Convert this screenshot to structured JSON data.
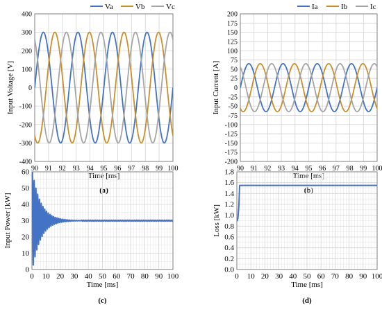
{
  "colors": {
    "va": "#4472c4",
    "vb": "#c9902a",
    "vc": "#a5a5a5",
    "ia": "#4472c4",
    "ib": "#c9902a",
    "ic": "#a5a5a5",
    "power": "#4472c4",
    "loss": "#4472c4",
    "grid": "#d4d4d4",
    "axis": "#7f7f7f"
  },
  "chart_data": [
    {
      "id": "a",
      "type": "line",
      "panel_label": "(a)",
      "xlabel": "Time [ms]",
      "ylabel": "Input Voltage [V]",
      "xlim": [
        90,
        100
      ],
      "ylim": [
        -400,
        400
      ],
      "xticks": [
        90,
        91,
        92,
        93,
        94,
        95,
        96,
        97,
        98,
        99,
        100
      ],
      "yticks": [
        -400,
        -300,
        -200,
        -100,
        0,
        100,
        200,
        300,
        400
      ],
      "grid": true,
      "legend_position": "top-right",
      "waveform": "three-phase sine",
      "frequency_hz": 400,
      "series": [
        {
          "name": "Va",
          "amplitude": 300,
          "phase_deg": 0
        },
        {
          "name": "Vb",
          "amplitude": 300,
          "phase_deg": -120
        },
        {
          "name": "Vc",
          "amplitude": 300,
          "phase_deg": 120
        }
      ]
    },
    {
      "id": "b",
      "type": "line",
      "panel_label": "(b)",
      "xlabel": "Time [ms]",
      "ylabel": "Input Current [A]",
      "xlim": [
        90,
        100
      ],
      "ylim": [
        -200,
        200
      ],
      "xticks": [
        90,
        91,
        92,
        93,
        94,
        95,
        96,
        97,
        98,
        99,
        100
      ],
      "yticks": [
        -200,
        -175,
        -150,
        -125,
        -100,
        -75,
        -50,
        -25,
        0,
        25,
        50,
        75,
        100,
        125,
        150,
        175,
        200
      ],
      "grid": true,
      "legend_position": "top-right",
      "waveform": "three-phase sine",
      "frequency_hz": 400,
      "series": [
        {
          "name": "Ia",
          "amplitude": 65,
          "phase_deg": 0
        },
        {
          "name": "Ib",
          "amplitude": 65,
          "phase_deg": -120
        },
        {
          "name": "Ic",
          "amplitude": 65,
          "phase_deg": 120
        }
      ]
    },
    {
      "id": "c",
      "type": "line",
      "panel_label": "(c)",
      "xlabel": "Time [ms]",
      "ylabel": "Input Power [kW]",
      "xlim": [
        0,
        100
      ],
      "ylim": [
        0,
        60
      ],
      "xticks": [
        0,
        10,
        20,
        30,
        40,
        50,
        60,
        70,
        80,
        90,
        100
      ],
      "yticks": [
        0,
        10,
        20,
        30,
        40,
        50,
        60
      ],
      "grid": true,
      "series": [
        {
          "name": "",
          "steady_state": 30,
          "initial_oscillation_amplitude": 32,
          "decay_time_constant_ms": 6,
          "oscillation_frequency_hz": 800,
          "settled_after_ms": 35
        }
      ]
    },
    {
      "id": "d",
      "type": "line",
      "panel_label": "(d)",
      "xlabel": "Time [ms]",
      "ylabel": "Loss [kW]",
      "xlim": [
        0,
        100
      ],
      "ylim": [
        0,
        1.8
      ],
      "xticks": [
        0,
        10,
        20,
        30,
        40,
        50,
        60,
        70,
        80,
        90,
        100
      ],
      "yticks": [
        0,
        0.2,
        0.4,
        0.6,
        0.8,
        1.0,
        1.2,
        1.4,
        1.6,
        1.8
      ],
      "grid": true,
      "series": [
        {
          "name": "",
          "x": [
            0,
            0.3,
            0.8,
            1.5,
            2,
            100
          ],
          "y": [
            0.9,
            0.9,
            0.95,
            1.2,
            1.55,
            1.55
          ]
        }
      ]
    }
  ]
}
